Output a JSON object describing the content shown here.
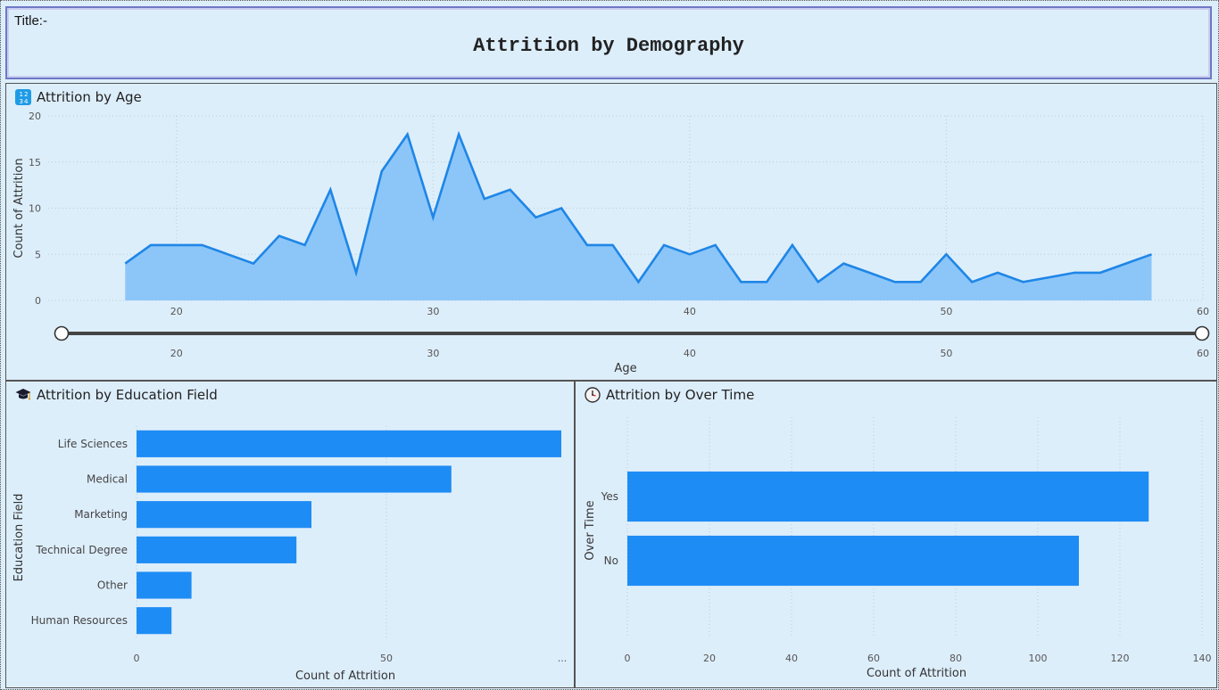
{
  "header": {
    "label": "Title:-",
    "title": "Attrition by Demography"
  },
  "panels": {
    "age": {
      "title": "Attrition by Age",
      "icon": "numbers-icon"
    },
    "education": {
      "title": "Attrition by Education Field",
      "icon": "graduation-cap-icon"
    },
    "overtime": {
      "title": "Attrition by Over Time",
      "icon": "clock-icon"
    }
  },
  "colors": {
    "line": "#1f86e6",
    "area": "#8cc6f9",
    "bar": "#1e8cf5",
    "background": "#ddeefb"
  },
  "slider": {
    "min": 18,
    "max": 60,
    "ticks": [
      20,
      30,
      40,
      50,
      60
    ],
    "label": "Age"
  },
  "chart_data": [
    {
      "type": "area",
      "xlabel": "Age",
      "ylabel": "Count of Attrition",
      "xlim": [
        15,
        60
      ],
      "ylim": [
        0,
        20
      ],
      "xticks": [
        20,
        30,
        40,
        50,
        60
      ],
      "yticks": [
        0,
        5,
        10,
        15,
        20
      ],
      "grid": true,
      "x": [
        18,
        19,
        20,
        21,
        22,
        23,
        24,
        25,
        26,
        27,
        28,
        29,
        30,
        31,
        32,
        33,
        34,
        35,
        36,
        37,
        38,
        39,
        40,
        41,
        42,
        43,
        44,
        45,
        46,
        47,
        48,
        49,
        50,
        51,
        52,
        53,
        54,
        55,
        56,
        57,
        58
      ],
      "values": [
        4,
        6,
        6,
        6,
        5,
        4,
        7,
        6,
        12,
        3,
        14,
        18,
        9,
        18,
        11,
        12,
        9,
        10,
        6,
        6,
        2,
        6,
        5,
        6,
        2,
        2,
        6,
        2,
        4,
        3,
        2,
        2,
        5,
        2,
        3,
        2,
        2.5,
        3,
        3,
        4,
        5
      ]
    },
    {
      "type": "bar",
      "orientation": "horizontal",
      "xlabel": "Count of Attrition",
      "ylabel": "Education Field",
      "xlim": [
        0,
        85
      ],
      "xticks": [
        0,
        50
      ],
      "xticks_more": "...",
      "categories": [
        "Life Sciences",
        "Medical",
        "Marketing",
        "Technical Degree",
        "Other",
        "Human Resources"
      ],
      "values": [
        89,
        63,
        35,
        32,
        11,
        7
      ]
    },
    {
      "type": "bar",
      "orientation": "horizontal",
      "xlabel": "Count of Attrition",
      "ylabel": "Over Time",
      "xlim": [
        0,
        140
      ],
      "xticks": [
        0,
        20,
        40,
        60,
        80,
        100,
        120,
        140
      ],
      "categories": [
        "Yes",
        "No"
      ],
      "values": [
        127,
        110
      ]
    }
  ]
}
